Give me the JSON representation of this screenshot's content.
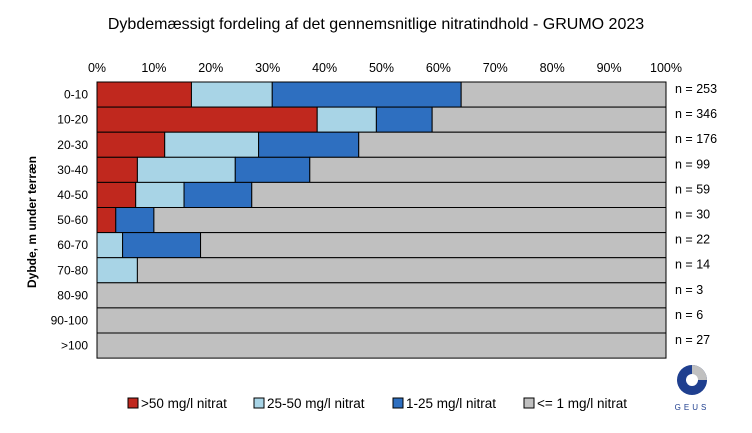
{
  "chart_data": {
    "type": "bar",
    "orientation": "horizontal",
    "stacked": true,
    "title": "Dybdemæssigt fordeling af det gennemsnitlige nitratindhold - GRUMO 2023",
    "ylabel": "Dybde, m under terræn",
    "xlabel": "",
    "xlim": [
      0,
      100
    ],
    "x_ticks": [
      "0%",
      "10%",
      "20%",
      "30%",
      "40%",
      "50%",
      "60%",
      "70%",
      "80%",
      "90%",
      "100%"
    ],
    "grid": false,
    "legend_position": "bottom",
    "categories": [
      "0-10",
      "10-20",
      "20-30",
      "30-40",
      "40-50",
      "50-60",
      "60-70",
      "70-80",
      "80-90",
      "90-100",
      ">100"
    ],
    "counts": [
      "n = 253",
      "n = 346",
      "n = 176",
      "n = 99",
      "n = 59",
      "n = 30",
      "n = 22",
      "n = 14",
      "n = 3",
      "n = 6",
      "n = 27"
    ],
    "series": [
      {
        "name": ">50 mg/l nitrat",
        "color": "#c0281e",
        "values": [
          16.6,
          38.7,
          11.9,
          7.1,
          6.8,
          3.3,
          0,
          0,
          0,
          0,
          0
        ]
      },
      {
        "name": "25-50 mg/l nitrat",
        "color": "#a8d4e6",
        "values": [
          14.2,
          10.4,
          16.5,
          17.2,
          8.5,
          0,
          4.5,
          7.1,
          0,
          0,
          0
        ]
      },
      {
        "name": "1-25 mg/l nitrat",
        "color": "#2e6fc0",
        "values": [
          33.2,
          9.8,
          17.6,
          13.1,
          11.9,
          6.7,
          13.7,
          0,
          0,
          0,
          0
        ]
      },
      {
        "name": "<= 1 mg/l nitrat",
        "color": "#c0c0c0",
        "values": [
          36.0,
          41.1,
          54.0,
          62.6,
          72.8,
          90.0,
          81.8,
          92.9,
          100,
          100,
          100
        ]
      }
    ]
  },
  "logo": {
    "text": "GEUS"
  }
}
